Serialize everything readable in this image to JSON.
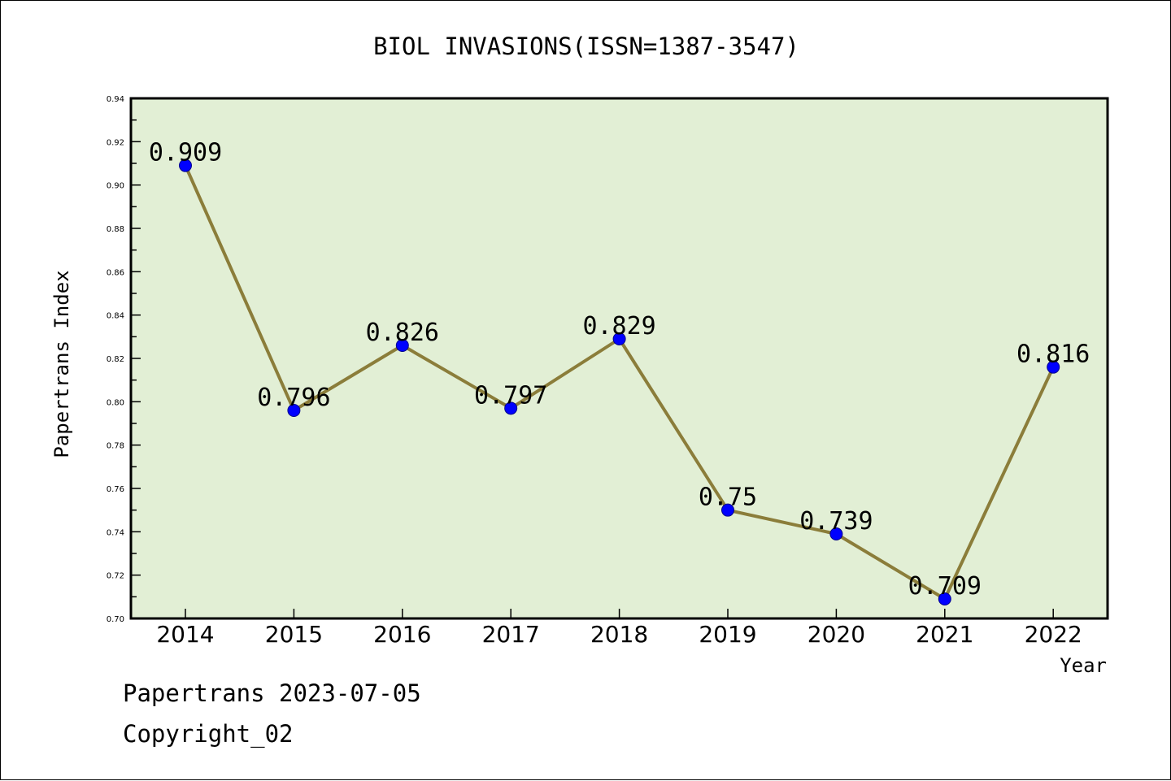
{
  "chart_data": {
    "type": "line",
    "title": "BIOL INVASIONS(ISSN=1387-3547)",
    "xlabel": "Year",
    "ylabel": "Papertrans Index",
    "categories": [
      "2014",
      "2015",
      "2016",
      "2017",
      "2018",
      "2019",
      "2020",
      "2021",
      "2022"
    ],
    "values": [
      0.909,
      0.796,
      0.826,
      0.797,
      0.829,
      0.75,
      0.739,
      0.709,
      0.816
    ],
    "data_labels": [
      "0.909",
      "0.796",
      "0.826",
      "0.797",
      "0.829",
      "0.75",
      "0.739",
      "0.709",
      "0.816"
    ],
    "ylim": [
      0.7,
      0.94
    ],
    "yticks": [
      "0.70",
      "0.72",
      "0.74",
      "0.76",
      "0.78",
      "0.80",
      "0.82",
      "0.84",
      "0.86",
      "0.88",
      "0.90",
      "0.92",
      "0.94"
    ],
    "grid": false,
    "colors": {
      "line": "#8b7d3a",
      "marker": "#0000ff",
      "marker_edge": "#00008b",
      "plot_background": "#e2efd5"
    }
  },
  "footer": {
    "line1": "Papertrans 2023-07-05",
    "line2": "Copyright_02"
  }
}
